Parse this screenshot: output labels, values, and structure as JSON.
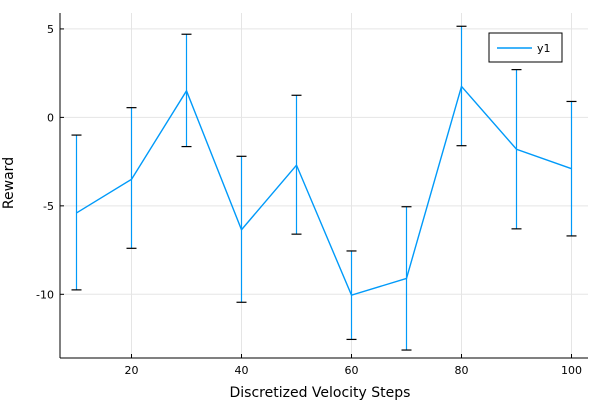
{
  "chart_data": {
    "type": "line",
    "xlabel": "Discretized Velocity Steps",
    "ylabel": "Reward",
    "x": [
      10,
      20,
      30,
      40,
      50,
      60,
      70,
      80,
      90,
      100
    ],
    "series": [
      {
        "name": "y1",
        "values": [
          -5.4,
          -3.5,
          1.5,
          -6.35,
          -2.7,
          -10.05,
          -9.1,
          1.75,
          -1.8,
          -2.9
        ],
        "error_upper": [
          -1.0,
          0.55,
          4.7,
          -2.2,
          1.25,
          -7.55,
          -5.05,
          5.15,
          2.7,
          0.9
        ],
        "error_lower": [
          -9.75,
          -7.4,
          -1.65,
          -10.45,
          -6.6,
          -12.55,
          -13.15,
          -1.6,
          -6.3,
          -6.7
        ]
      }
    ],
    "xticks": [
      20,
      40,
      60,
      80,
      100
    ],
    "yticks": [
      5,
      0,
      -5,
      -10
    ],
    "xlim": [
      7,
      103
    ],
    "ylim": [
      -13.6,
      5.9
    ],
    "grid": true,
    "legend_position": "top-right",
    "colors": {
      "series": "#009AF9",
      "grid": "#E5E5E5",
      "axis": "#000000"
    }
  }
}
